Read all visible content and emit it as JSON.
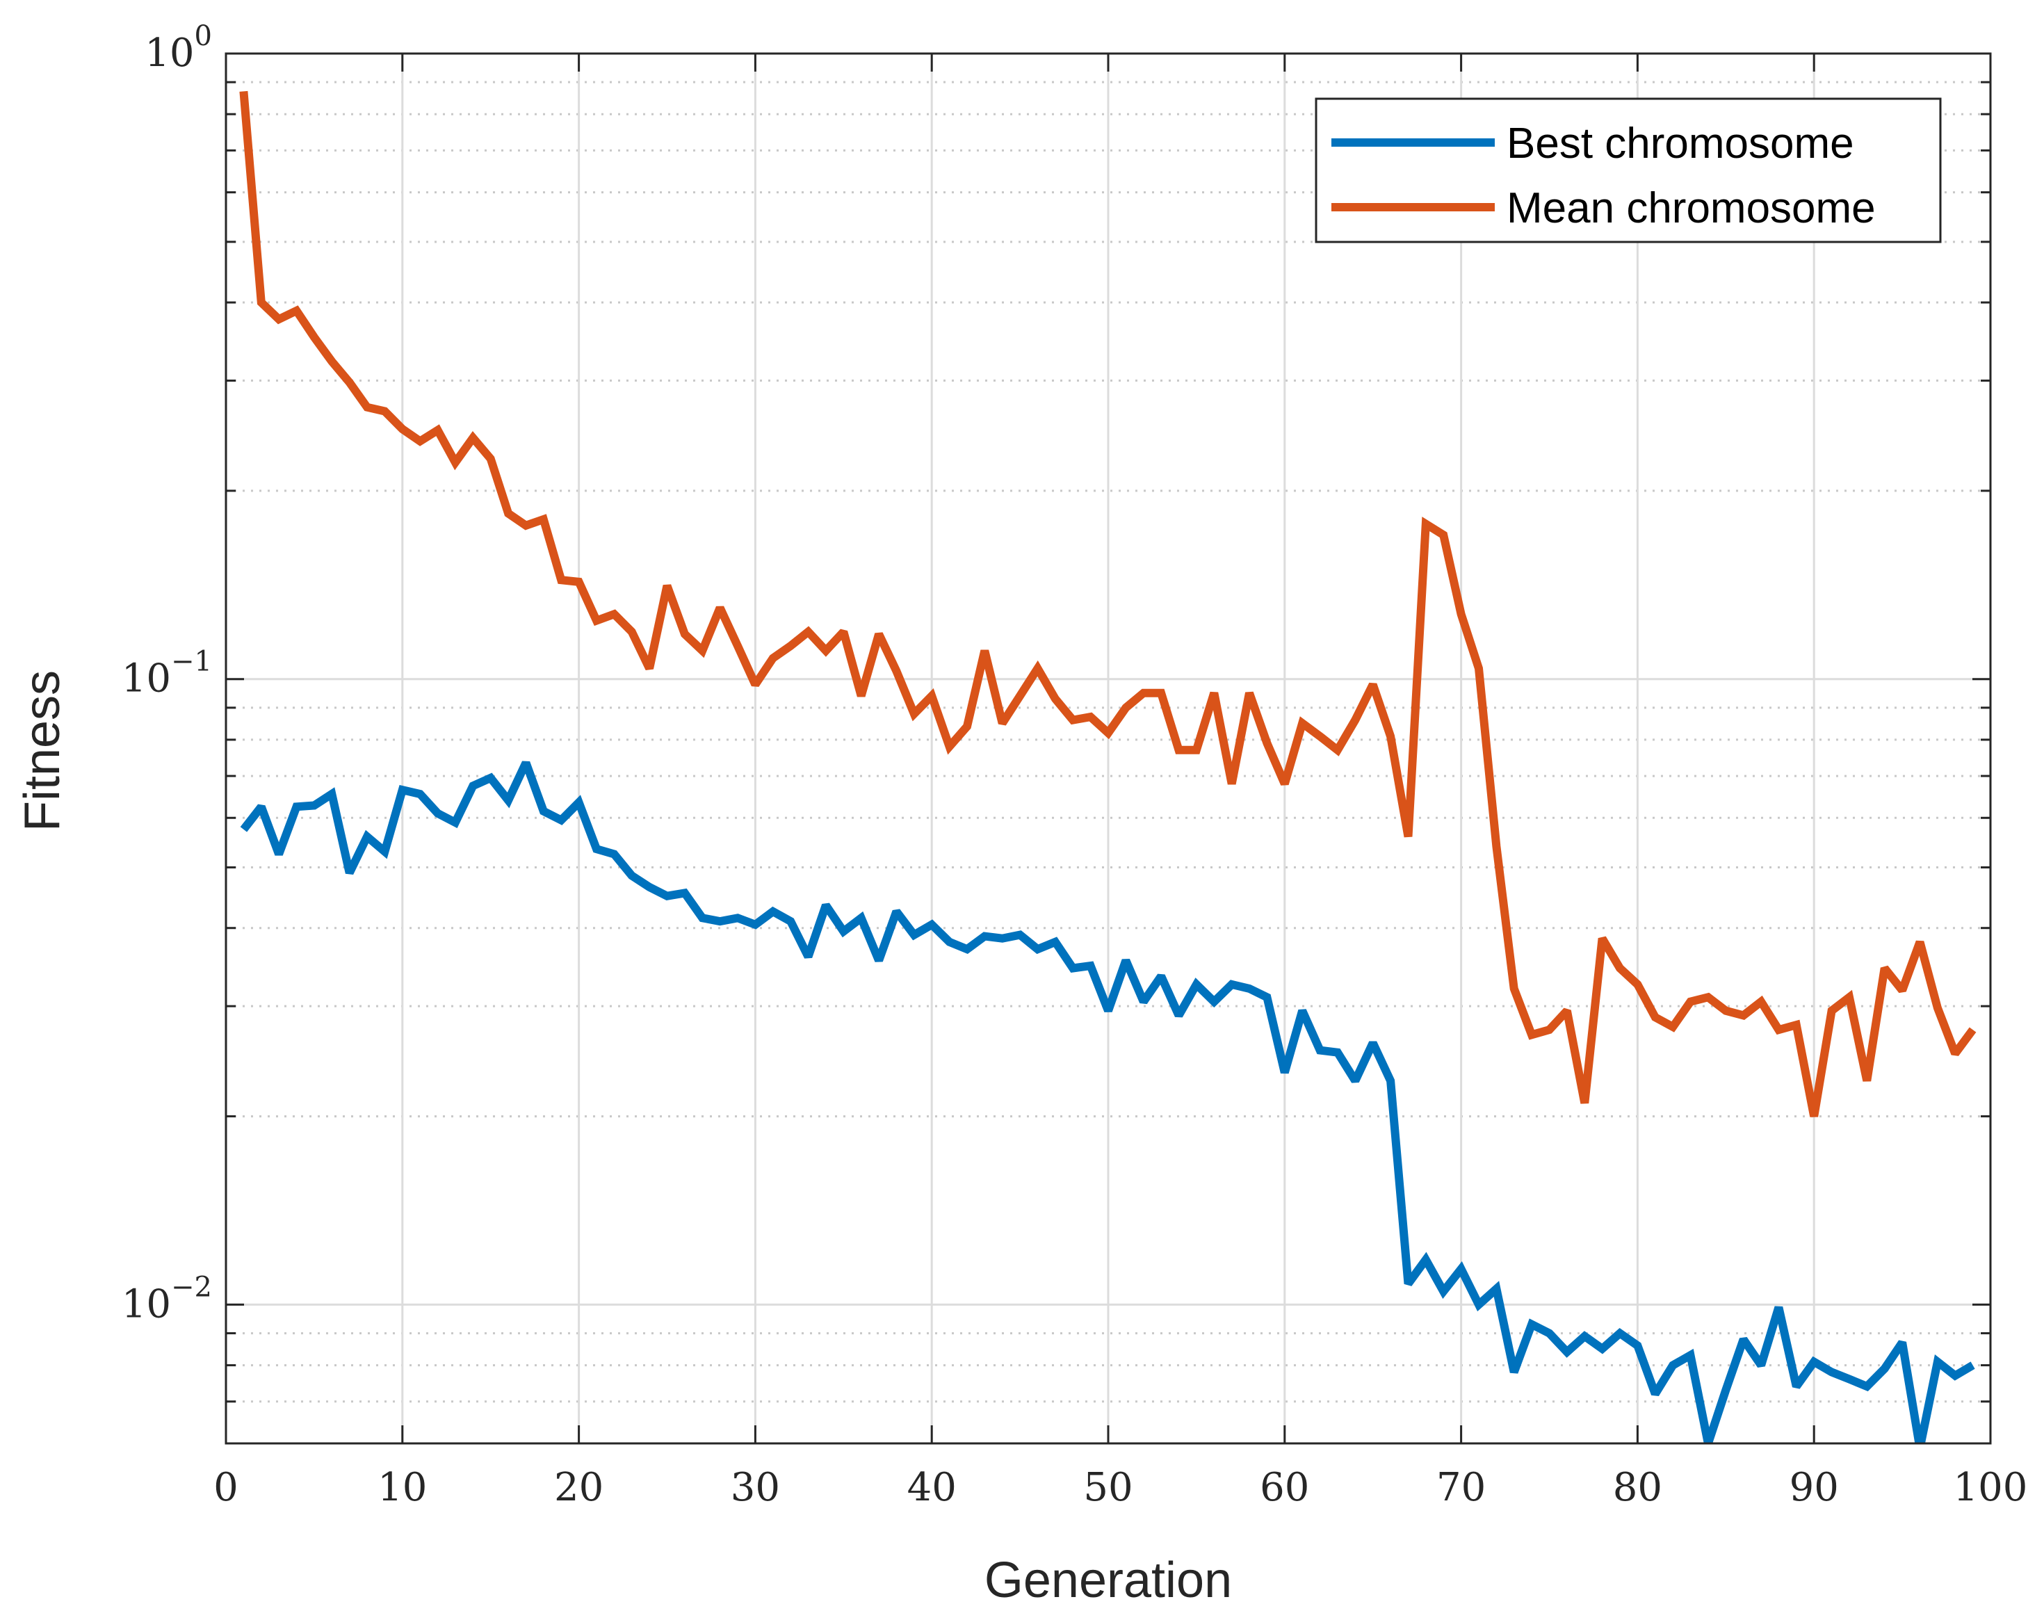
{
  "chart_data": {
    "type": "line",
    "title": "",
    "xlabel": "Generation",
    "ylabel": "Fitness",
    "xlim": [
      0,
      100
    ],
    "ylim": [
      0.006,
      1
    ],
    "yscale": "log",
    "grid": true,
    "legend_position": "top-right",
    "x_ticks": [
      0,
      10,
      20,
      30,
      40,
      50,
      60,
      70,
      80,
      90,
      100
    ],
    "x_tick_labels": [
      "0",
      "10",
      "20",
      "30",
      "40",
      "50",
      "60",
      "70",
      "80",
      "90",
      "100"
    ],
    "y_ticks": [
      {
        "value": 1,
        "base": "10",
        "exp": "0"
      },
      {
        "value": 0.1,
        "base": "10",
        "exp": "−1"
      },
      {
        "value": 0.01,
        "base": "10",
        "exp": "−2"
      }
    ],
    "x": [
      1,
      2,
      3,
      4,
      5,
      6,
      7,
      8,
      9,
      10,
      11,
      12,
      13,
      14,
      15,
      16,
      17,
      18,
      19,
      20,
      21,
      22,
      23,
      24,
      25,
      26,
      27,
      28,
      29,
      30,
      31,
      32,
      33,
      34,
      35,
      36,
      37,
      38,
      39,
      40,
      41,
      42,
      43,
      44,
      45,
      46,
      47,
      48,
      49,
      50,
      51,
      52,
      53,
      54,
      55,
      56,
      57,
      58,
      59,
      60,
      61,
      62,
      63,
      64,
      65,
      66,
      67,
      68,
      69,
      70,
      71,
      72,
      73,
      74,
      75,
      76,
      77,
      78,
      79,
      80,
      81,
      82,
      83,
      84,
      85,
      86,
      87,
      88,
      89,
      90,
      91,
      92,
      93,
      94,
      95,
      96,
      97,
      98,
      99
    ],
    "series": [
      {
        "name": "Best chromosome",
        "color": "#0072BD",
        "values": [
          0.0575,
          0.0625,
          0.0525,
          0.0625,
          0.0628,
          0.0655,
          0.049,
          0.056,
          0.053,
          0.0665,
          0.0655,
          0.061,
          0.059,
          0.0675,
          0.0695,
          0.064,
          0.0735,
          0.0615,
          0.0595,
          0.0635,
          0.0535,
          0.0525,
          0.0485,
          0.0465,
          0.045,
          0.0455,
          0.0415,
          0.041,
          0.0415,
          0.0405,
          0.0425,
          0.041,
          0.036,
          0.0435,
          0.0395,
          0.0415,
          0.0355,
          0.0425,
          0.039,
          0.0405,
          0.038,
          0.037,
          0.0388,
          0.0385,
          0.039,
          0.037,
          0.038,
          0.0345,
          0.0348,
          0.0295,
          0.0355,
          0.0305,
          0.0335,
          0.029,
          0.0325,
          0.0305,
          0.0325,
          0.032,
          0.031,
          0.0235,
          0.0295,
          0.0255,
          0.0253,
          0.0228,
          0.0262,
          0.0228,
          0.0108,
          0.0118,
          0.0105,
          0.0114,
          0.01,
          0.0106,
          0.0078,
          0.0093,
          0.009,
          0.0084,
          0.0089,
          0.0085,
          0.009,
          0.0086,
          0.0072,
          0.008,
          0.0083,
          0.006,
          0.0073,
          0.0088,
          0.008,
          0.0099,
          0.0074,
          0.0081,
          0.0078,
          0.0076,
          0.0074,
          0.0079,
          0.0087,
          0.0059,
          0.0081,
          0.0077,
          0.008
        ]
      },
      {
        "name": "Mean chromosome",
        "color": "#D95319",
        "values": [
          0.87,
          0.4,
          0.376,
          0.388,
          0.352,
          0.322,
          0.298,
          0.272,
          0.268,
          0.251,
          0.24,
          0.25,
          0.222,
          0.243,
          0.225,
          0.184,
          0.176,
          0.18,
          0.144,
          0.143,
          0.124,
          0.127,
          0.119,
          0.104,
          0.141,
          0.118,
          0.111,
          0.13,
          0.113,
          0.098,
          0.108,
          0.113,
          0.119,
          0.111,
          0.119,
          0.094,
          0.118,
          0.103,
          0.088,
          0.094,
          0.078,
          0.084,
          0.111,
          0.085,
          0.094,
          0.104,
          0.093,
          0.086,
          0.087,
          0.082,
          0.09,
          0.095,
          0.095,
          0.077,
          0.077,
          0.095,
          0.068,
          0.095,
          0.079,
          0.068,
          0.085,
          0.081,
          0.077,
          0.086,
          0.098,
          0.081,
          0.056,
          0.177,
          0.17,
          0.127,
          0.104,
          0.054,
          0.032,
          0.027,
          0.0275,
          0.0295,
          0.021,
          0.0385,
          0.0345,
          0.0325,
          0.0288,
          0.0278,
          0.0305,
          0.031,
          0.0295,
          0.029,
          0.0305,
          0.0275,
          0.028,
          0.02,
          0.0295,
          0.031,
          0.0228,
          0.0345,
          0.0318,
          0.038,
          0.0298,
          0.0252,
          0.0275
        ]
      }
    ]
  }
}
